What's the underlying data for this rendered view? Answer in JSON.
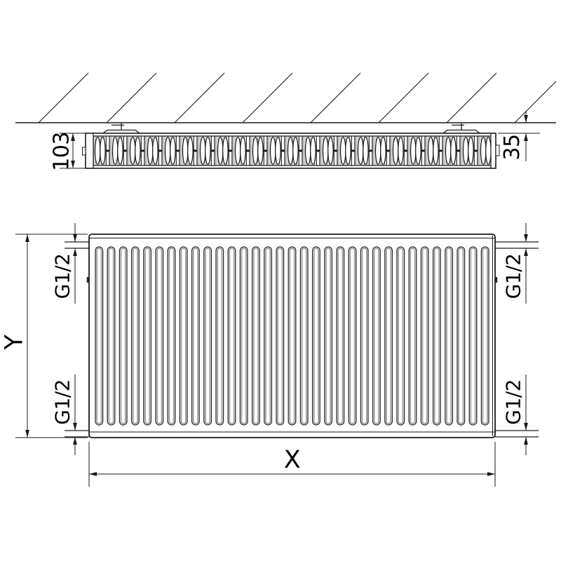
{
  "drawing": {
    "top_view": {
      "depth_label": "103",
      "wall_gap_label": "35"
    },
    "front_view": {
      "height_label": "Y",
      "width_label": "X",
      "connections": {
        "top_left": "G1/2",
        "bottom_left": "G1/2",
        "top_right": "G1/2",
        "bottom_right": "G1/2"
      }
    },
    "colors": {
      "line": "#1a1a1a",
      "text": "#050505",
      "shade": "#9c9c9c",
      "background": "#ffffff"
    }
  }
}
